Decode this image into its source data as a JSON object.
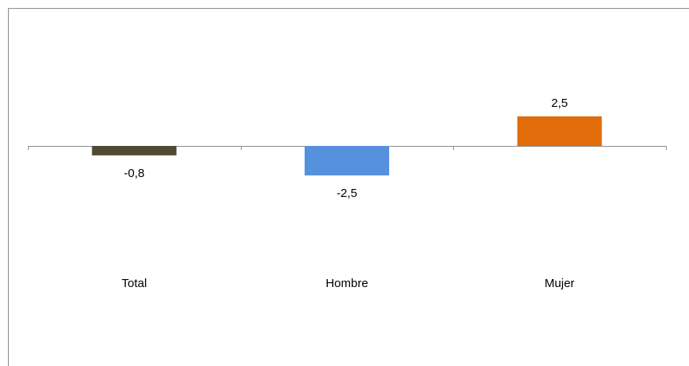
{
  "chart_data": {
    "type": "bar",
    "categories": [
      "Total",
      "Hombre",
      "Mujer"
    ],
    "values": [
      -0.8,
      -2.5,
      2.5
    ],
    "value_labels": [
      "-0,8",
      "-2,5",
      "2,5"
    ],
    "colors": [
      "#4f4a32",
      "#5591dc",
      "#e36c0a"
    ],
    "title": "",
    "xlabel": "",
    "ylabel": "",
    "grid": false,
    "legend": "none"
  }
}
